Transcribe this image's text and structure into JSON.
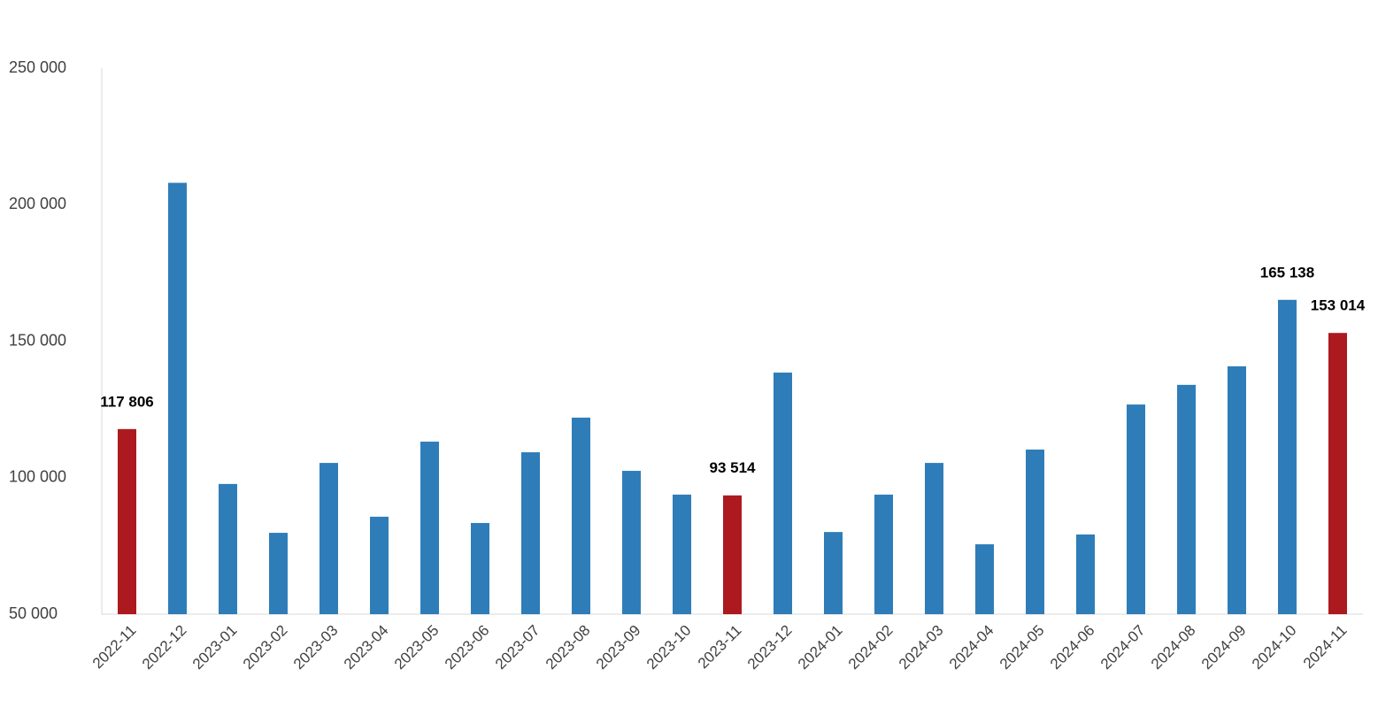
{
  "chart_data": {
    "type": "bar",
    "categories": [
      "2022-11",
      "2022-12",
      "2023-01",
      "2023-02",
      "2023-03",
      "2023-04",
      "2023-05",
      "2023-06",
      "2023-07",
      "2023-08",
      "2023-09",
      "2023-10",
      "2023-11",
      "2023-12",
      "2024-01",
      "2024-02",
      "2024-03",
      "2024-04",
      "2024-05",
      "2024-06",
      "2024-07",
      "2024-08",
      "2024-09",
      "2024-10",
      "2024-11"
    ],
    "values": [
      117806,
      208000,
      97700,
      79800,
      105400,
      85700,
      113200,
      83400,
      109300,
      122000,
      102500,
      93800,
      93514,
      138500,
      80100,
      93800,
      105400,
      75600,
      110300,
      79200,
      126800,
      134000,
      140800,
      165138,
      153014
    ],
    "value_labels": [
      "117 806",
      null,
      null,
      null,
      null,
      null,
      null,
      null,
      null,
      null,
      null,
      null,
      "93 514",
      null,
      null,
      null,
      null,
      null,
      null,
      null,
      null,
      null,
      null,
      "165 138",
      "153 014"
    ],
    "colors": [
      "#ac1a1f",
      "#2f7db8",
      "#2f7db8",
      "#2f7db8",
      "#2f7db8",
      "#2f7db8",
      "#2f7db8",
      "#2f7db8",
      "#2f7db8",
      "#2f7db8",
      "#2f7db8",
      "#2f7db8",
      "#ac1a1f",
      "#2f7db8",
      "#2f7db8",
      "#2f7db8",
      "#2f7db8",
      "#2f7db8",
      "#2f7db8",
      "#2f7db8",
      "#2f7db8",
      "#2f7db8",
      "#2f7db8",
      "#2f7db8",
      "#ac1a1f"
    ],
    "ylim": [
      50000,
      250000
    ],
    "yticks": [
      {
        "value": 50000,
        "label": "50 000"
      },
      {
        "value": 100000,
        "label": "100 000"
      },
      {
        "value": 150000,
        "label": "150 000"
      },
      {
        "value": 200000,
        "label": "200 000"
      },
      {
        "value": 250000,
        "label": "250 000"
      }
    ],
    "grid": false
  }
}
